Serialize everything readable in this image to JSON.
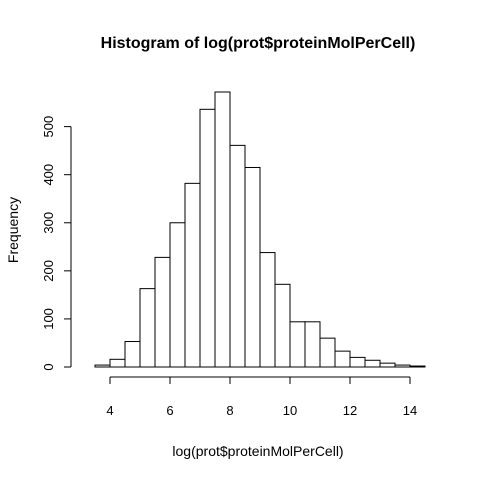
{
  "chart_data": {
    "type": "bar",
    "title": "Histogram of log(prot$proteinMolPerCell)",
    "xlabel": "log(prot$proteinMolPerCell)",
    "ylabel": "Frequency",
    "bin_width": 0.5,
    "bin_start": 3.5,
    "values": [
      4,
      16,
      53,
      163,
      228,
      300,
      382,
      536,
      572,
      461,
      415,
      238,
      172,
      94,
      94,
      60,
      33,
      20,
      14,
      8,
      4,
      2
    ],
    "xlim": [
      3.5,
      14.5
    ],
    "ylim": [
      0,
      572
    ],
    "x_ticks": [
      4,
      6,
      8,
      10,
      12,
      14
    ],
    "y_ticks": [
      0,
      100,
      200,
      300,
      400,
      500
    ],
    "grid": false
  }
}
